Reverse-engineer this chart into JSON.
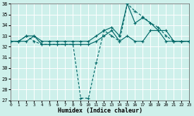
{
  "xlabel": "Humidex (Indice chaleur)",
  "xlim": [
    0,
    23
  ],
  "ylim": [
    27,
    36
  ],
  "yticks": [
    27,
    28,
    29,
    30,
    31,
    32,
    33,
    34,
    35,
    36
  ],
  "xticks": [
    0,
    1,
    2,
    3,
    4,
    5,
    6,
    7,
    8,
    9,
    10,
    11,
    12,
    13,
    14,
    15,
    16,
    17,
    18,
    19,
    20,
    21,
    22,
    23
  ],
  "bg_color": "#cef0eb",
  "line_color": "#006868",
  "grid_color": "#b8e8e2",
  "series1_y": [
    32.5,
    32.5,
    32.5,
    33.0,
    32.2,
    32.2,
    32.2,
    32.2,
    32.2,
    32.2,
    32.2,
    32.5,
    33.0,
    33.5,
    32.5,
    33.0,
    32.5,
    32.5,
    33.5,
    33.5,
    32.5,
    32.5,
    32.5,
    32.5
  ],
  "series2_y": [
    32.5,
    32.5,
    33.0,
    32.5,
    32.2,
    32.2,
    32.2,
    32.2,
    32.2,
    27.2,
    27.2,
    30.5,
    33.5,
    33.0,
    32.5,
    36.0,
    35.3,
    34.8,
    34.2,
    33.8,
    33.0,
    32.5,
    32.5,
    32.5
  ],
  "series3_y": [
    32.5,
    32.5,
    33.0,
    33.0,
    32.5,
    32.5,
    32.5,
    32.5,
    32.5,
    32.5,
    32.5,
    33.0,
    33.5,
    33.8,
    33.0,
    36.0,
    34.2,
    34.7,
    34.2,
    33.5,
    33.5,
    32.5,
    32.5,
    32.5
  ]
}
